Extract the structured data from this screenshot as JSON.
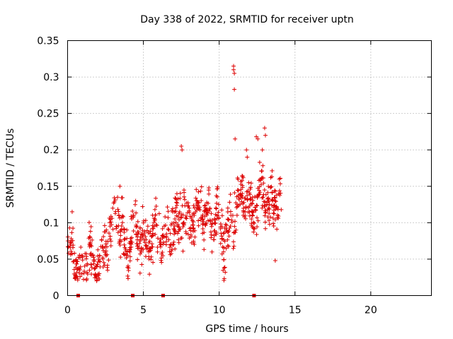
{
  "chart_data": {
    "type": "scatter",
    "title": "Day 338 of 2022, SRMTID for receiver uptn",
    "xlabel": "GPS time / hours",
    "ylabel": "SRMTID / TECUs",
    "xlim": [
      0,
      24
    ],
    "ylim": [
      0,
      0.35
    ],
    "grid": true,
    "x_ticks": [
      0,
      5,
      10,
      15,
      20
    ],
    "x_tick_labels": [
      "0",
      "5",
      "10",
      "15",
      "20"
    ],
    "y_ticks": [
      0,
      0.05,
      0.1,
      0.15,
      0.2,
      0.25,
      0.3,
      0.35
    ],
    "y_tick_labels": [
      "0",
      "0.05",
      "0.1",
      "0.15",
      "0.2",
      "0.25",
      "0.3",
      "0.35"
    ],
    "marker": "plus",
    "color": "#dd0000",
    "series": [
      {
        "name": "SRMTID",
        "x_range": [
          0,
          14.1
        ],
        "trend": [
          [
            0.0,
            0.065
          ],
          [
            0.2,
            0.075
          ],
          [
            0.4,
            0.045
          ],
          [
            0.7,
            0.035
          ],
          [
            1.0,
            0.04
          ],
          [
            1.3,
            0.06
          ],
          [
            1.6,
            0.05
          ],
          [
            1.9,
            0.035
          ],
          [
            2.2,
            0.05
          ],
          [
            2.5,
            0.07
          ],
          [
            2.8,
            0.08
          ],
          [
            3.0,
            0.1
          ],
          [
            3.3,
            0.11
          ],
          [
            3.6,
            0.085
          ],
          [
            3.9,
            0.06
          ],
          [
            4.2,
            0.07
          ],
          [
            4.5,
            0.1
          ],
          [
            4.8,
            0.08
          ],
          [
            5.1,
            0.065
          ],
          [
            5.5,
            0.08
          ],
          [
            5.9,
            0.09
          ],
          [
            6.3,
            0.075
          ],
          [
            6.7,
            0.085
          ],
          [
            7.1,
            0.095
          ],
          [
            7.5,
            0.12
          ],
          [
            7.9,
            0.1
          ],
          [
            8.3,
            0.105
          ],
          [
            8.7,
            0.12
          ],
          [
            9.1,
            0.11
          ],
          [
            9.5,
            0.1
          ],
          [
            9.9,
            0.105
          ],
          [
            10.3,
            0.075
          ],
          [
            10.7,
            0.09
          ],
          [
            11.1,
            0.12
          ],
          [
            11.5,
            0.145
          ],
          [
            11.9,
            0.13
          ],
          [
            12.3,
            0.11
          ],
          [
            12.7,
            0.145
          ],
          [
            13.1,
            0.13
          ],
          [
            13.5,
            0.12
          ],
          [
            14.1,
            0.135
          ]
        ],
        "spread": 0.035,
        "outliers": [
          [
            10.95,
            0.315
          ],
          [
            10.95,
            0.31
          ],
          [
            11.0,
            0.305
          ],
          [
            11.0,
            0.283
          ],
          [
            11.05,
            0.215
          ],
          [
            12.45,
            0.218
          ],
          [
            12.55,
            0.215
          ],
          [
            13.0,
            0.23
          ],
          [
            13.05,
            0.22
          ],
          [
            12.85,
            0.2
          ],
          [
            7.5,
            0.205
          ],
          [
            7.55,
            0.2
          ],
          [
            11.8,
            0.2
          ],
          [
            11.85,
            0.19
          ],
          [
            13.7,
            0.048
          ],
          [
            10.4,
            0.032
          ],
          [
            0.3,
            0.115
          ],
          [
            3.45,
            0.15
          ]
        ]
      },
      {
        "name": "markers",
        "type": "marker",
        "shape": "square",
        "points": [
          [
            0.7,
            0
          ],
          [
            4.3,
            0
          ],
          [
            6.3,
            0
          ],
          [
            12.3,
            0
          ]
        ]
      }
    ]
  }
}
